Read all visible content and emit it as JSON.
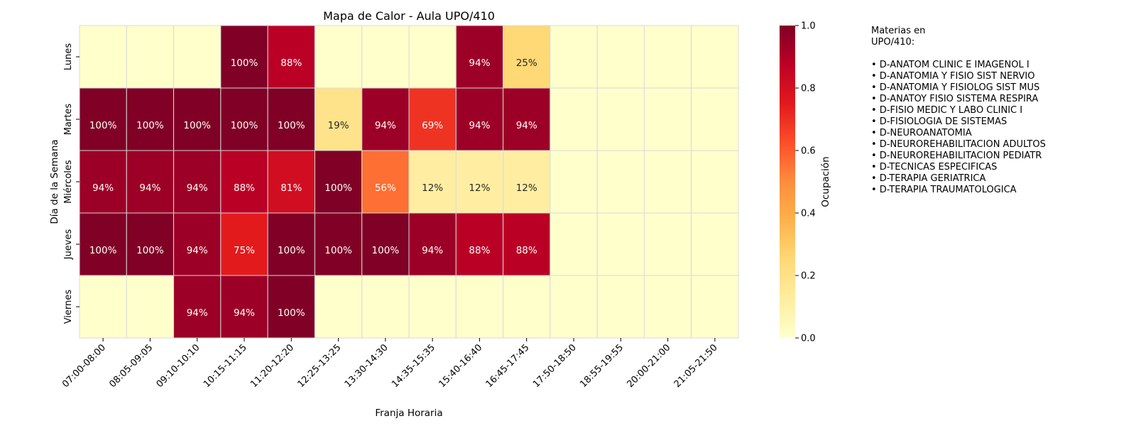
{
  "chart_data": {
    "type": "heatmap",
    "title": "Mapa de Calor - Aula UPO/410",
    "xlabel": "Franja Horaria",
    "ylabel": "Día de la Semana",
    "colorbar_label": "Ocupación",
    "colorbar_ticks": [
      "0.0",
      "0.2",
      "0.4",
      "0.6",
      "0.8",
      "1.0"
    ],
    "vmin": 0,
    "vmax": 1,
    "colormap": [
      "#ffffcc",
      "#ffeda0",
      "#fed976",
      "#feb24c",
      "#fd8d3c",
      "#fc4e2a",
      "#e31a1c",
      "#bd0026",
      "#800026"
    ],
    "x_categories": [
      "07:00-08:00",
      "08:05-09:05",
      "09:10-10:10",
      "10:15-11:15",
      "11:20-12:20",
      "12:25-13:25",
      "13:30-14:30",
      "14:35-15:35",
      "15:40-16:40",
      "16:45-17:45",
      "17:50-18:50",
      "18:55-19:55",
      "20:00-21:00",
      "21:05-21:50"
    ],
    "y_categories": [
      "Lunes",
      "Martes",
      "Miércoles",
      "Jueves",
      "Viernes"
    ],
    "values": [
      [
        0,
        0,
        0,
        1.0,
        0.88,
        0,
        0,
        0,
        0.94,
        0.25,
        0,
        0,
        0,
        0
      ],
      [
        1.0,
        1.0,
        1.0,
        1.0,
        1.0,
        0.19,
        0.94,
        0.69,
        0.94,
        0.94,
        0,
        0,
        0,
        0
      ],
      [
        0.94,
        0.94,
        0.94,
        0.88,
        0.81,
        1.0,
        0.56,
        0.12,
        0.12,
        0.12,
        0,
        0,
        0,
        0
      ],
      [
        1.0,
        1.0,
        0.94,
        0.75,
        1.0,
        1.0,
        1.0,
        0.94,
        0.88,
        0.88,
        0,
        0,
        0,
        0
      ],
      [
        0,
        0,
        0.94,
        0.94,
        1.0,
        0,
        0,
        0,
        0,
        0,
        0,
        0,
        0,
        0
      ]
    ],
    "cell_labels": [
      [
        null,
        null,
        null,
        "100%",
        "88%",
        null,
        null,
        null,
        "94%",
        "25%",
        null,
        null,
        null,
        null
      ],
      [
        "100%",
        "100%",
        "100%",
        "100%",
        "100%",
        "19%",
        "94%",
        "69%",
        "94%",
        "94%",
        null,
        null,
        null,
        null
      ],
      [
        "94%",
        "94%",
        "94%",
        "88%",
        "81%",
        "100%",
        "56%",
        "12%",
        "12%",
        "12%",
        null,
        null,
        null,
        null
      ],
      [
        "100%",
        "100%",
        "94%",
        "75%",
        "100%",
        "100%",
        "100%",
        "94%",
        "88%",
        "88%",
        null,
        null,
        null,
        null
      ],
      [
        null,
        null,
        "94%",
        "94%",
        "100%",
        null,
        null,
        null,
        null,
        null,
        null,
        null,
        null,
        null
      ]
    ],
    "grid": true,
    "legend": "colorbar-right"
  },
  "sidebar": {
    "title_lines": [
      "Materias en",
      "UPO/410:"
    ],
    "items": [
      "• D-ANATOM CLINIC E IMAGENOL I",
      "• D-ANATOMIA Y FISIO SIST NERVIO",
      "• D-ANATOMIA Y FISIOLOG SIST MUS",
      "• D-ANATOY FISIO SISTEMA RESPIRA",
      "• D-FISIO MEDIC Y LABO CLINIC I",
      "• D-FISIOLOGIA DE SISTEMAS",
      "• D-NEUROANATOMIA",
      "• D-NEUROREHABILITACION ADULTOS",
      "• D-NEUROREHABILITACION PEDIATR",
      "• D-TECNICAS ESPECIFICAS",
      "• D-TERAPIA GERIATRICA",
      "• D-TERAPIA TRAUMATOLOGICA"
    ]
  }
}
